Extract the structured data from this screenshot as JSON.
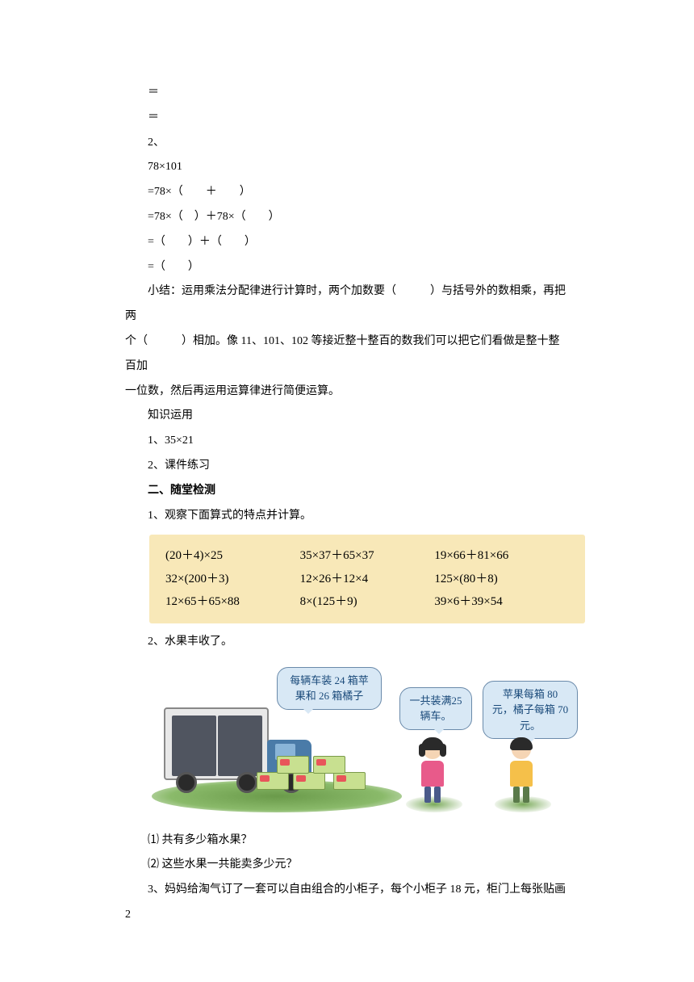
{
  "lines": {
    "l1": "＝",
    "l2": "＝",
    "l3": "2、",
    "l4": "78×101",
    "l5": "=78×（　　＋　　）",
    "l6": "=78×（　）＋78×（　　）",
    "l7": "=（　　）＋（　　）",
    "l8": "=（　　）",
    "summary1": "小结：运用乘法分配律进行计算时，两个加数要（　　　）与括号外的数相乘，再把两",
    "summary2": "个（　　　）相加。像 11、101、102 等接近整十整百的数我们可以把它们看做是整十整百加",
    "summary3": "一位数，然后再运用运算律进行简便运算。",
    "apply_title": "知识运用",
    "apply1": "1、35×21",
    "apply2": "2、课件练习",
    "section2": "二、随堂检测",
    "q1": "1、观察下面算式的特点并计算。",
    "q2": "2、水果丰收了。",
    "q2_1": "⑴ 共有多少箱水果？",
    "q2_2": "⑵ 这些水果一共能卖多少元？",
    "q3": "3、妈妈给淘气订了一套可以自由组合的小柜子，每个小柜子 18 元，柜门上每张贴画 2"
  },
  "exercise_box": {
    "background_color": "#f8e8b8",
    "font_family": "Times New Roman",
    "rows": [
      [
        "(20＋4)×25",
        "35×37＋65×37",
        "19×66＋81×66"
      ],
      [
        "32×(200＋3)",
        "12×26＋12×4",
        "125×(80＋8)"
      ],
      [
        "12×65＋65×88",
        "8×(125＋9)",
        "39×6＋39×54"
      ]
    ]
  },
  "illustration": {
    "bubble1": "每辆车装 24 箱苹果和 26 箱橘子",
    "bubble2": "一共装满25 辆车。",
    "bubble3": "苹果每箱 80 元，橘子每箱 70 元。",
    "colors": {
      "bubble_bg": "#d8e8f5",
      "bubble_border": "#6a8aaa",
      "bubble_text": "#1a4a7a",
      "ground": "#6a9a4a",
      "box": "#c8e090",
      "truck_cab": "#4a7ba8"
    }
  }
}
